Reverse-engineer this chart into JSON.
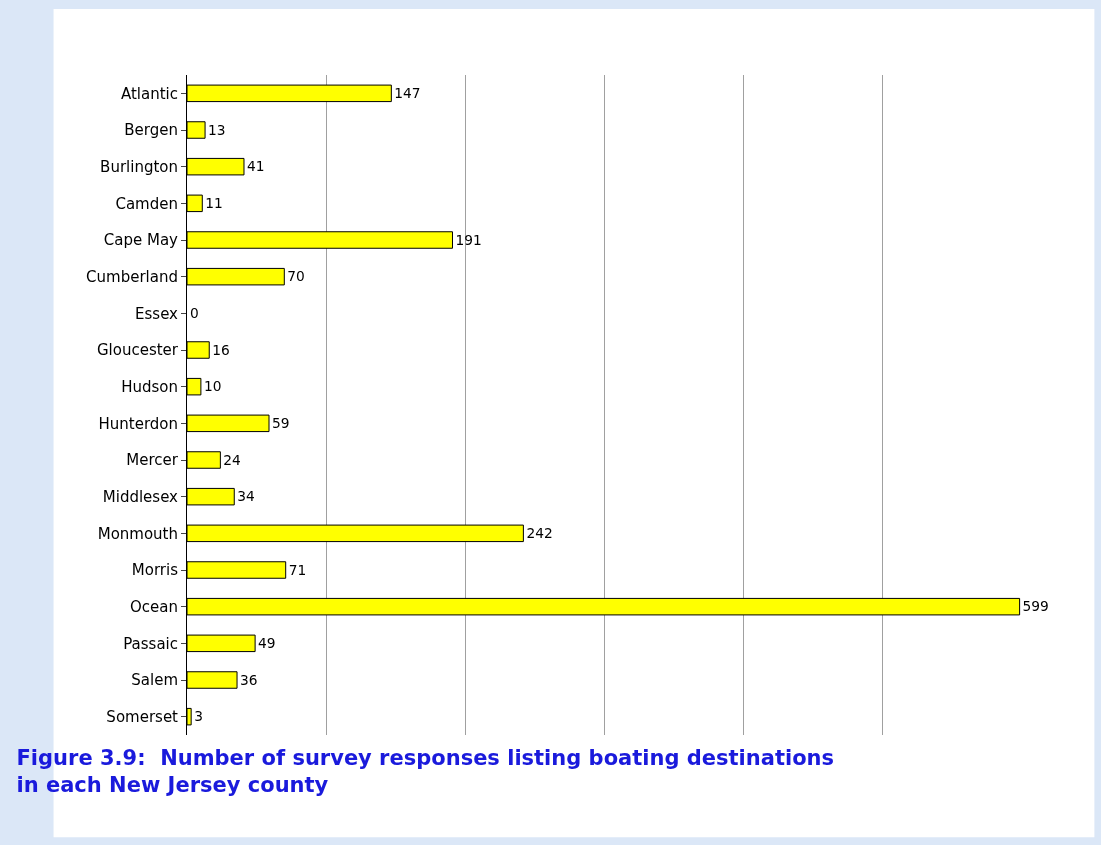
{
  "chart_data": {
    "type": "bar",
    "orientation": "horizontal",
    "title": "Figure 3.9:  Number of survey responses listing boating destinations\nin each New Jersey county",
    "categories": [
      "Atlantic",
      "Bergen",
      "Burlington",
      "Camden",
      "Cape May",
      "Cumberland",
      "Essex",
      "Gloucester",
      "Hudson",
      "Hunterdon",
      "Mercer",
      "Middlesex",
      "Monmouth",
      "Morris",
      "Ocean",
      "Passaic",
      "Salem",
      "Somerset"
    ],
    "values": [
      147,
      13,
      41,
      11,
      191,
      70,
      0,
      16,
      10,
      59,
      24,
      34,
      242,
      71,
      599,
      49,
      36,
      3
    ],
    "color": "#ffff00",
    "xlim": [
      0,
      600
    ],
    "xticks": [
      {
        "value": 100,
        "label": null
      },
      {
        "value": 200,
        "label": null
      },
      {
        "value": 300,
        "label": null
      },
      {
        "value": 400,
        "label": null
      },
      {
        "value": 500,
        "label": null
      }
    ],
    "grid": "x",
    "data_labels": true,
    "tick_labels": "y"
  }
}
